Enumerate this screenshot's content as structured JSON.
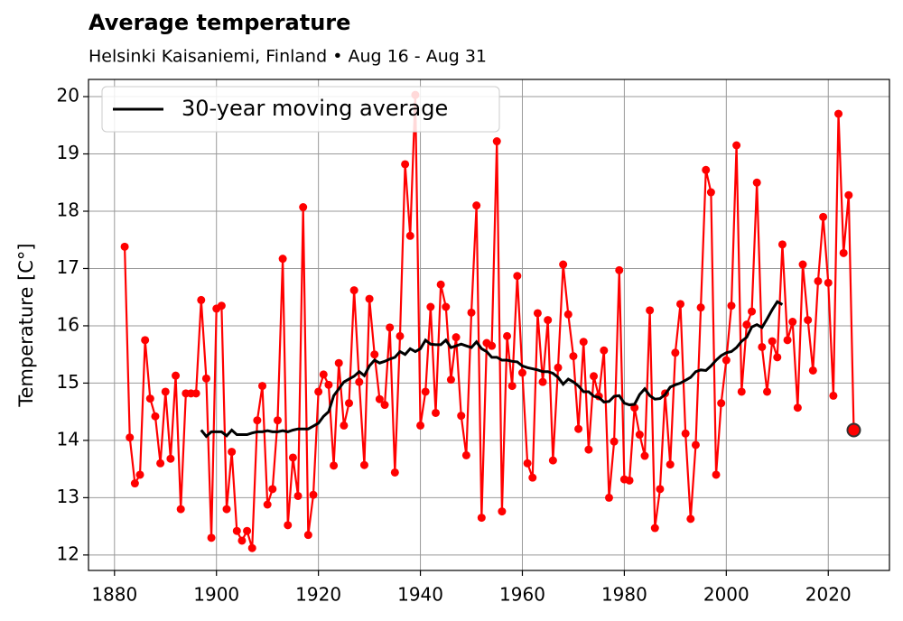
{
  "chart_data": {
    "type": "line",
    "title": "Average temperature",
    "subtitle": "Helsinki Kaisaniemi, Finland • Aug 16 - Aug 31",
    "ylabel": "Temperature [C°]",
    "xlim": [
      1874.9,
      2032
    ],
    "ylim": [
      11.73,
      20.3
    ],
    "xticks": [
      1880,
      1900,
      1920,
      1940,
      1960,
      1980,
      2000,
      2020
    ],
    "yticks": [
      12,
      13,
      14,
      15,
      16,
      17,
      18,
      19,
      20
    ],
    "grid": true,
    "legend": "upper left",
    "highlight_last": true,
    "series": [
      {
        "color": "#ff0000",
        "marker": true,
        "x": [
          1882,
          1883,
          1884,
          1885,
          1886,
          1887,
          1888,
          1889,
          1890,
          1891,
          1892,
          1893,
          1894,
          1895,
          1896,
          1897,
          1898,
          1899,
          1900,
          1901,
          1902,
          1903,
          1904,
          1905,
          1906,
          1907,
          1908,
          1909,
          1910,
          1911,
          1912,
          1913,
          1914,
          1915,
          1916,
          1917,
          1918,
          1919,
          1920,
          1921,
          1922,
          1923,
          1924,
          1925,
          1926,
          1927,
          1928,
          1929,
          1930,
          1931,
          1932,
          1933,
          1934,
          1935,
          1936,
          1937,
          1938,
          1939,
          1940,
          1941,
          1942,
          1943,
          1944,
          1945,
          1946,
          1947,
          1948,
          1949,
          1950,
          1951,
          1952,
          1953,
          1954,
          1955,
          1956,
          1957,
          1958,
          1959,
          1960,
          1961,
          1962,
          1963,
          1964,
          1965,
          1966,
          1967,
          1968,
          1969,
          1970,
          1971,
          1972,
          1973,
          1974,
          1975,
          1976,
          1977,
          1978,
          1979,
          1980,
          1981,
          1982,
          1983,
          1984,
          1985,
          1986,
          1987,
          1988,
          1989,
          1990,
          1991,
          1992,
          1993,
          1994,
          1995,
          1996,
          1997,
          1998,
          1999,
          2000,
          2001,
          2002,
          2003,
          2004,
          2005,
          2006,
          2007,
          2008,
          2009,
          2010,
          2011,
          2012,
          2013,
          2014,
          2015,
          2016,
          2017,
          2018,
          2019,
          2020,
          2021,
          2022,
          2023,
          2024,
          2025
        ],
        "values": [
          17.38,
          14.05,
          13.25,
          13.4,
          15.75,
          14.73,
          14.42,
          13.6,
          14.85,
          13.68,
          15.13,
          12.8,
          14.82,
          14.82,
          14.82,
          16.45,
          15.08,
          12.3,
          16.3,
          16.35,
          12.8,
          13.8,
          12.42,
          12.25,
          12.42,
          12.12,
          14.35,
          14.95,
          12.88,
          13.15,
          14.35,
          17.17,
          12.52,
          13.7,
          13.03,
          18.07,
          12.35,
          13.05,
          14.85,
          15.15,
          14.97,
          13.56,
          15.35,
          14.26,
          14.65,
          16.62,
          15.02,
          13.57,
          16.47,
          15.5,
          14.72,
          14.62,
          15.97,
          13.44,
          15.82,
          18.82,
          17.57,
          20.03,
          14.26,
          14.85,
          16.33,
          14.48,
          16.72,
          16.33,
          15.06,
          15.8,
          14.43,
          13.74,
          16.23,
          18.1,
          12.65,
          15.7,
          15.65,
          19.22,
          12.76,
          15.82,
          14.95,
          16.87,
          15.18,
          13.6,
          13.35,
          16.22,
          15.02,
          16.1,
          13.65,
          15.27,
          17.07,
          16.2,
          15.47,
          14.2,
          15.72,
          13.84,
          15.12,
          14.77,
          15.57,
          13.0,
          13.98,
          16.97,
          13.32,
          13.3,
          14.57,
          14.1,
          13.73,
          16.27,
          12.47,
          13.15,
          14.82,
          13.58,
          15.53,
          16.38,
          14.12,
          12.63,
          13.92,
          16.32,
          18.72,
          18.33,
          13.4,
          14.65,
          15.4,
          16.35,
          19.15,
          14.85,
          16.02,
          16.25,
          18.5,
          15.63,
          14.85,
          15.73,
          15.45,
          17.42,
          15.75,
          16.07,
          14.57,
          17.07,
          16.1,
          15.22,
          16.78,
          17.9,
          16.75,
          14.78,
          19.7,
          17.27,
          18.28,
          14.18
        ]
      },
      {
        "name": "30-year moving average",
        "color": "#000000",
        "marker": false,
        "x": [
          1897,
          1898,
          1899,
          1900,
          1901,
          1902,
          1903,
          1904,
          1905,
          1906,
          1907,
          1908,
          1909,
          1910,
          1911,
          1912,
          1913,
          1914,
          1915,
          1916,
          1917,
          1918,
          1919,
          1920,
          1921,
          1922,
          1923,
          1924,
          1925,
          1926,
          1927,
          1928,
          1929,
          1930,
          1931,
          1932,
          1933,
          1934,
          1935,
          1936,
          1937,
          1938,
          1939,
          1940,
          1941,
          1942,
          1943,
          1944,
          1945,
          1946,
          1947,
          1948,
          1949,
          1950,
          1951,
          1952,
          1953,
          1954,
          1955,
          1956,
          1957,
          1958,
          1959,
          1960,
          1961,
          1962,
          1963,
          1964,
          1965,
          1966,
          1967,
          1968,
          1969,
          1970,
          1971,
          1972,
          1973,
          1974,
          1975,
          1976,
          1977,
          1978,
          1979,
          1980,
          1981,
          1982,
          1983,
          1984,
          1985,
          1986,
          1987,
          1988,
          1989,
          1990,
          1991,
          1992,
          1993,
          1994,
          1995,
          1996,
          1997,
          1998,
          1999,
          2000,
          2001,
          2002,
          2003,
          2004,
          2005,
          2006,
          2007,
          2008,
          2009,
          2010,
          2011
        ],
        "values": [
          14.18,
          14.07,
          14.15,
          14.15,
          14.15,
          14.08,
          14.18,
          14.1,
          14.1,
          14.1,
          14.13,
          14.15,
          14.15,
          14.17,
          14.15,
          14.15,
          14.17,
          14.15,
          14.18,
          14.2,
          14.2,
          14.2,
          14.25,
          14.3,
          14.42,
          14.5,
          14.78,
          14.9,
          15.02,
          15.07,
          15.12,
          15.2,
          15.13,
          15.3,
          15.4,
          15.35,
          15.38,
          15.42,
          15.45,
          15.55,
          15.5,
          15.6,
          15.55,
          15.6,
          15.75,
          15.68,
          15.67,
          15.67,
          15.75,
          15.62,
          15.65,
          15.68,
          15.65,
          15.62,
          15.72,
          15.6,
          15.55,
          15.45,
          15.45,
          15.4,
          15.4,
          15.38,
          15.37,
          15.3,
          15.27,
          15.25,
          15.23,
          15.2,
          15.2,
          15.17,
          15.1,
          14.98,
          15.07,
          15.02,
          14.95,
          14.85,
          14.85,
          14.77,
          14.75,
          14.67,
          14.68,
          14.77,
          14.78,
          14.65,
          14.62,
          14.63,
          14.8,
          14.9,
          14.78,
          14.72,
          14.73,
          14.8,
          14.93,
          14.97,
          15.0,
          15.05,
          15.1,
          15.2,
          15.23,
          15.22,
          15.3,
          15.4,
          15.48,
          15.53,
          15.55,
          15.62,
          15.73,
          15.8,
          15.98,
          16.02,
          15.97,
          16.12,
          16.28,
          16.42,
          16.37
        ]
      }
    ]
  }
}
